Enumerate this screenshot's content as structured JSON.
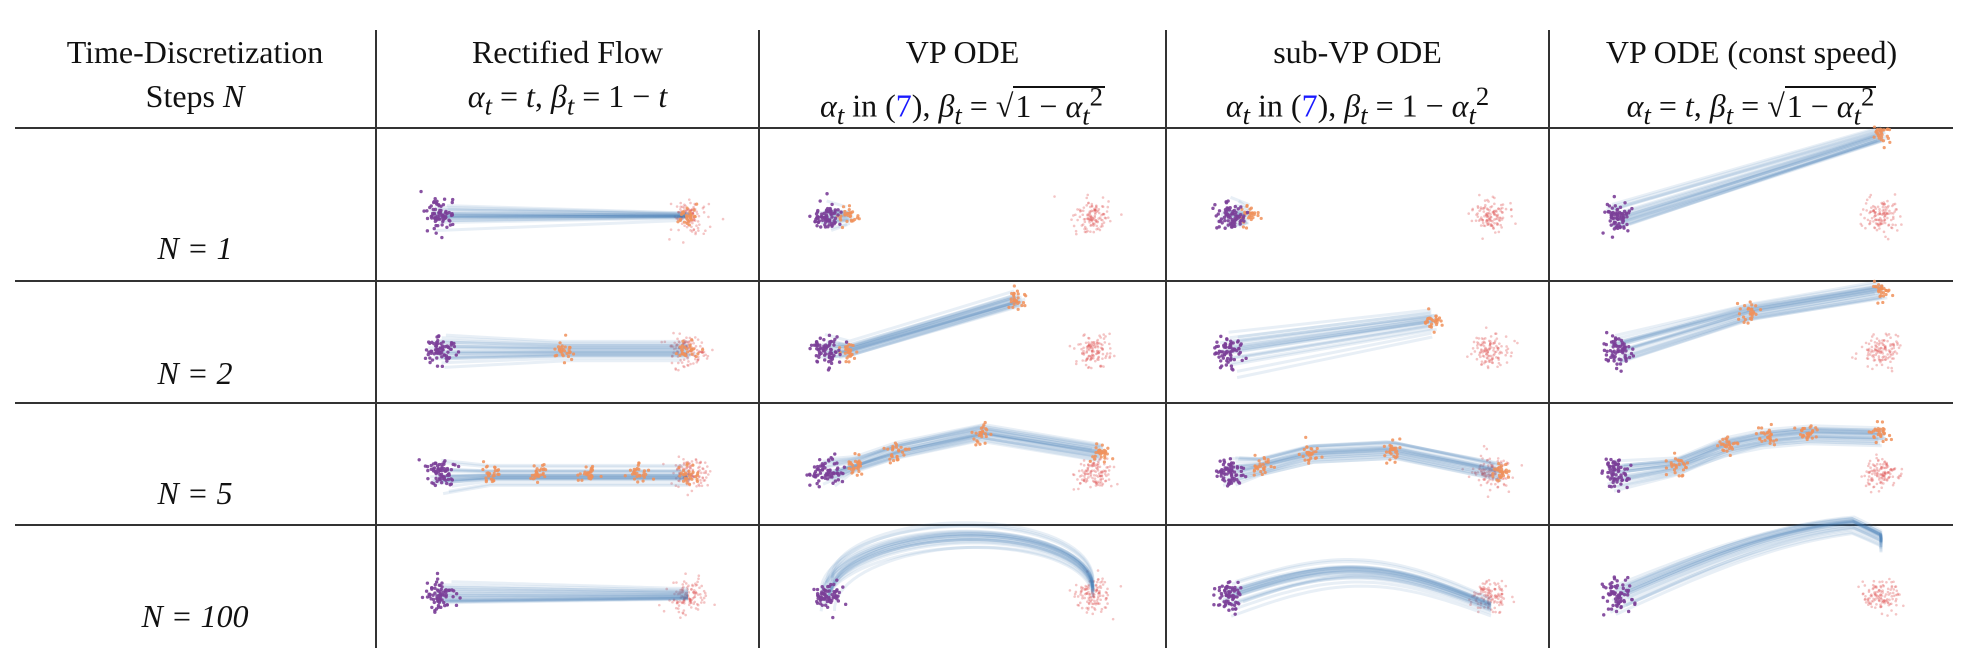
{
  "headers": {
    "col0": {
      "line1": "Time-Discretization",
      "line2_text": "Steps",
      "line2_var": "N"
    },
    "col1": {
      "title": "Rectified Flow",
      "formula": "αt = t, βt = 1 − t"
    },
    "col2": {
      "title": "VP ODE",
      "formula": "αt in (7), βt = √(1 − αt²)"
    },
    "col3": {
      "title": "sub-VP ODE",
      "formula": "αt in (7), βt = 1 − αt²"
    },
    "col4": {
      "title": "VP ODE (const speed)",
      "formula": "αt = t, βt = √(1 − αt²)"
    }
  },
  "rows": [
    {
      "label": "N = 1",
      "steps": 1
    },
    {
      "label": "N = 2",
      "steps": 2
    },
    {
      "label": "N = 5",
      "steps": 5
    },
    {
      "label": "N = 100",
      "steps": 100
    }
  ],
  "colors": {
    "source": "#7b3f98",
    "target": "#e05a5a",
    "intermediate": "#f0915a",
    "trajectory": "#3f7bb8"
  }
}
